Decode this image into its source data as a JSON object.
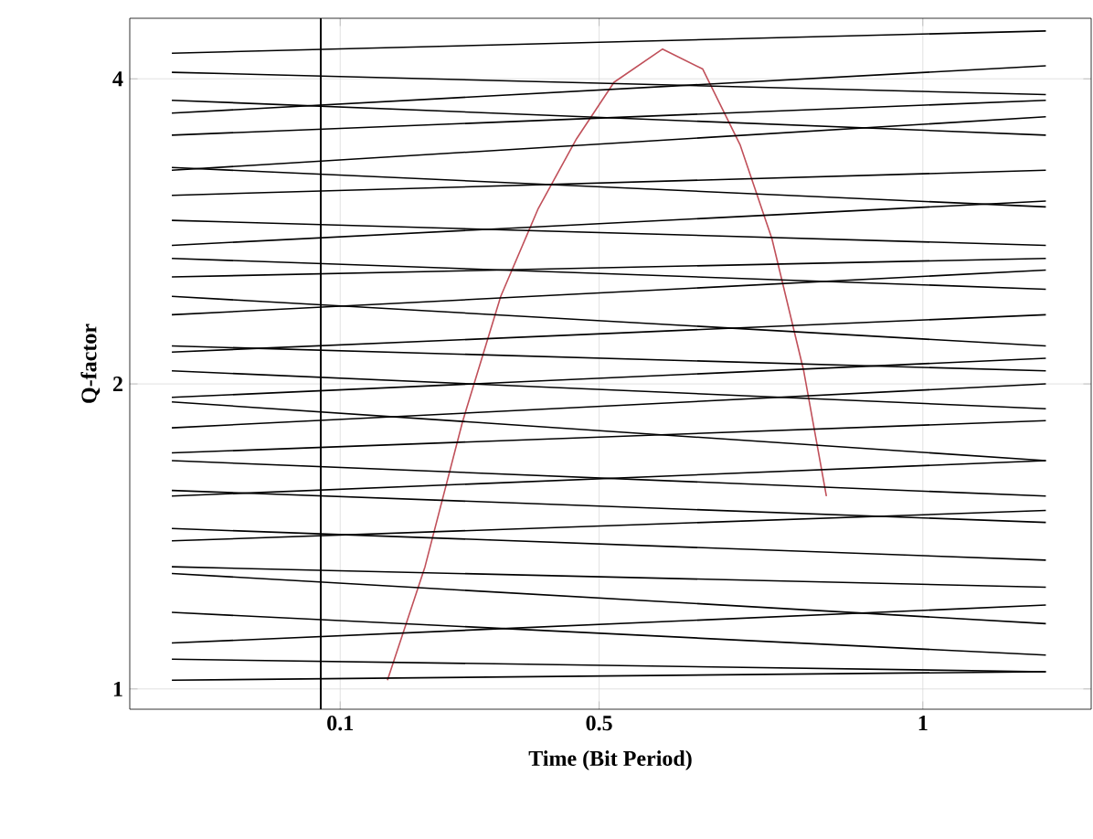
{
  "chart_data": {
    "type": "line",
    "xlabel": "Time (Bit Period)",
    "ylabel": "Q-factor",
    "log": "y",
    "grid": true,
    "marker": "none",
    "line_style": "solid",
    "xlim": [
      -0.225,
      1.26
    ],
    "ylim": [
      0.955,
      4.59
    ],
    "xticks": [
      0.1,
      0.5,
      1
    ],
    "yticks": [
      1,
      2,
      4
    ],
    "x": [
      -0.16,
      1.19
    ],
    "ref_lines": [
      {
        "axis": "x",
        "value": 0.07,
        "color": "#000000"
      }
    ],
    "series": [
      {
        "color": "#c0505a",
        "x": [
          0.173,
          0.231,
          0.289,
          0.348,
          0.406,
          0.465,
          0.523,
          0.598,
          0.66,
          0.718,
          0.767,
          0.816,
          0.851
        ],
        "values": [
          1.02,
          1.32,
          1.835,
          2.44,
          2.98,
          3.49,
          3.97,
          4.28,
          4.09,
          3.44,
          2.78,
          2.06,
          1.55
        ]
      },
      {
        "color": "#000000",
        "values": [
          4.24,
          4.46
        ]
      },
      {
        "color": "#000000",
        "values": [
          4.06,
          3.86
        ]
      },
      {
        "color": "#000000",
        "values": [
          3.81,
          3.52
        ]
      },
      {
        "color": "#000000",
        "values": [
          3.7,
          4.12
        ]
      },
      {
        "color": "#000000",
        "values": [
          3.52,
          3.81
        ]
      },
      {
        "color": "#000000",
        "values": [
          3.27,
          2.99
        ]
      },
      {
        "color": "#000000",
        "values": [
          3.25,
          3.67
        ]
      },
      {
        "color": "#000000",
        "values": [
          3.07,
          3.25
        ]
      },
      {
        "color": "#000000",
        "values": [
          2.9,
          2.74
        ]
      },
      {
        "color": "#000000",
        "values": [
          2.74,
          3.03
        ]
      },
      {
        "color": "#000000",
        "values": [
          2.66,
          2.48
        ]
      },
      {
        "color": "#000000",
        "values": [
          2.55,
          2.66
        ]
      },
      {
        "color": "#000000",
        "values": [
          2.44,
          2.18
        ]
      },
      {
        "color": "#000000",
        "values": [
          2.34,
          2.59
        ]
      },
      {
        "color": "#000000",
        "values": [
          2.18,
          2.06
        ]
      },
      {
        "color": "#000000",
        "values": [
          2.15,
          2.34
        ]
      },
      {
        "color": "#000000",
        "values": [
          2.06,
          1.89
        ]
      },
      {
        "color": "#000000",
        "values": [
          1.94,
          2.12
        ]
      },
      {
        "color": "#000000",
        "values": [
          1.92,
          1.68
        ]
      },
      {
        "color": "#000000",
        "values": [
          1.81,
          2.0
        ]
      },
      {
        "color": "#000000",
        "values": [
          1.71,
          1.84
        ]
      },
      {
        "color": "#000000",
        "values": [
          1.68,
          1.55
        ]
      },
      {
        "color": "#000000",
        "values": [
          1.57,
          1.46
        ]
      },
      {
        "color": "#000000",
        "values": [
          1.55,
          1.68
        ]
      },
      {
        "color": "#000000",
        "values": [
          1.44,
          1.34
        ]
      },
      {
        "color": "#000000",
        "values": [
          1.4,
          1.5
        ]
      },
      {
        "color": "#000000",
        "values": [
          1.32,
          1.26
        ]
      },
      {
        "color": "#000000",
        "values": [
          1.3,
          1.16
        ]
      },
      {
        "color": "#000000",
        "values": [
          1.19,
          1.08
        ]
      },
      {
        "color": "#000000",
        "values": [
          1.11,
          1.21
        ]
      },
      {
        "color": "#000000",
        "values": [
          1.07,
          1.04
        ]
      },
      {
        "color": "#000000",
        "values": [
          1.02,
          1.04
        ]
      }
    ]
  }
}
